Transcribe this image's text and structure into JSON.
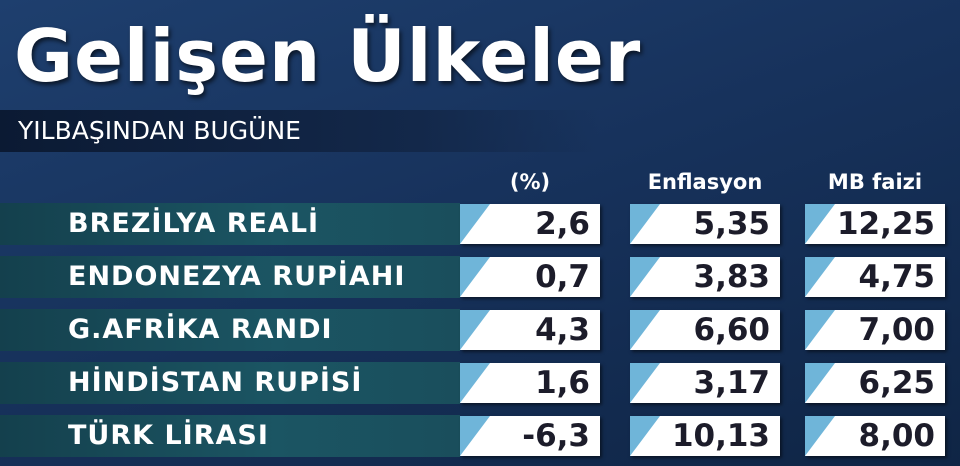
{
  "header": {
    "title": "Gelişen Ülkeler",
    "subtitle": "YILBAŞINDAN BUGÜNE"
  },
  "table": {
    "columns": [
      "(%)",
      "Enflasyon",
      "MB faizi"
    ],
    "rows": [
      [
        "BREZİLYA REALİ",
        "2,6",
        "5,35",
        "12,25"
      ],
      [
        "ENDONEZYA RUPİAHI",
        "0,7",
        "3,83",
        "4,75"
      ],
      [
        "G.AFRİKA RANDI",
        "4,3",
        "6,60",
        "7,00"
      ],
      [
        "HİNDİSTAN RUPİSİ",
        "1,6",
        "3,17",
        "6,25"
      ],
      [
        "TÜRK LİRASI",
        "-6,3",
        "10,13",
        "8,00"
      ]
    ]
  }
}
